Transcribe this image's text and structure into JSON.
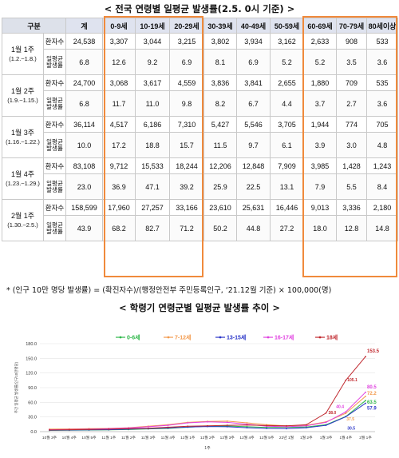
{
  "title": "< 전국 연령별 일평균 발생률(2.5. 0시 기준) >",
  "table": {
    "header": [
      "구분",
      "",
      "계",
      "0-9세",
      "10-19세",
      "20-29세",
      "30-39세",
      "40-49세",
      "50-59세",
      "60-69세",
      "70-79세",
      "80세이상"
    ],
    "row_labels": {
      "count": "환자수",
      "rate": "일평균 발생률"
    },
    "weeks": [
      {
        "label": "1월 1주",
        "sub": "(1.2.~1.8.)",
        "count": [
          "24,538",
          "3,307",
          "3,044",
          "3,215",
          "3,802",
          "3,934",
          "3,162",
          "2,633",
          "908",
          "533"
        ],
        "rate": [
          "6.8",
          "12.6",
          "9.2",
          "6.9",
          "8.1",
          "6.9",
          "5.2",
          "5.2",
          "3.5",
          "3.6"
        ]
      },
      {
        "label": "1월 2주",
        "sub": "(1.9.~1.15.)",
        "count": [
          "24,700",
          "3,068",
          "3,617",
          "4,559",
          "3,836",
          "3,841",
          "2,655",
          "1,880",
          "709",
          "535"
        ],
        "rate": [
          "6.8",
          "11.7",
          "11.0",
          "9.8",
          "8.2",
          "6.7",
          "4.4",
          "3.7",
          "2.7",
          "3.6"
        ]
      },
      {
        "label": "1월 3주",
        "sub": "(1.16.~1.22.)",
        "count": [
          "36,114",
          "4,517",
          "6,186",
          "7,310",
          "5,427",
          "5,546",
          "3,705",
          "1,944",
          "774",
          "705"
        ],
        "rate": [
          "10.0",
          "17.2",
          "18.8",
          "15.7",
          "11.5",
          "9.7",
          "6.1",
          "3.9",
          "3.0",
          "4.8"
        ]
      },
      {
        "label": "1월 4주",
        "sub": "(1.23.~1.29.)",
        "count": [
          "83,108",
          "9,712",
          "15,533",
          "18,244",
          "12,206",
          "12,848",
          "7,909",
          "3,985",
          "1,428",
          "1,243"
        ],
        "rate": [
          "23.0",
          "36.9",
          "47.1",
          "39.2",
          "25.9",
          "22.5",
          "13.1",
          "7.9",
          "5.5",
          "8.4"
        ]
      },
      {
        "label": "2월 1주",
        "sub": "(1.30.~2.5.)",
        "count": [
          "158,599",
          "17,960",
          "27,257",
          "33,166",
          "23,610",
          "25,631",
          "16,446",
          "9,013",
          "3,336",
          "2,180"
        ],
        "rate": [
          "43.9",
          "68.2",
          "82.7",
          "71.2",
          "50.2",
          "44.8",
          "27.2",
          "18.0",
          "12.8",
          "14.8"
        ]
      }
    ]
  },
  "note": "* (인구 10만 명당 발생률) = (확진자수)/(행정안전부 주민등록인구, ‘21.12월 기준) × 100,000(명)",
  "chart_title": "< 학령기 연령군별 일평균 발생률 추이 >",
  "chart_data": {
    "type": "line",
    "ylabel": "주간 일평균 발생률(인구10만명당)",
    "xlabel": "1주",
    "ylim": [
      0,
      180
    ],
    "yticks": [
      "0.0",
      "30.0",
      "60.0",
      "90.0",
      "120.0",
      "150.0",
      "180.0"
    ],
    "x": [
      "10월 3주",
      "10월 4주",
      "10월 5주",
      "11월 1주",
      "11월 2주",
      "11월 3주",
      "11월 4주",
      "12월 1주",
      "12월 2주",
      "12월 3주",
      "12월 4주",
      "12월 5주",
      "22년 1월",
      "1월 2주",
      "1월 3주",
      "1월 4주",
      "2월 1주"
    ],
    "series": [
      {
        "name": "0-6세",
        "color": "#2fb84a",
        "values": [
          2.5,
          2.8,
          3.2,
          3.6,
          4.2,
          5.5,
          6.5,
          9.0,
          11.0,
          11.5,
          10.0,
          8.5,
          9.0,
          9.5,
          14.0,
          31.0,
          63.5
        ]
      },
      {
        "name": "7-12세",
        "color": "#f39a4c",
        "values": [
          5.0,
          5.5,
          6.0,
          6.5,
          8.0,
          11.0,
          14.0,
          19.0,
          21.0,
          21.5,
          18.0,
          14.0,
          12.0,
          13.0,
          20.0,
          37.5,
          72.2
        ]
      },
      {
        "name": "13-15세",
        "color": "#2b36c8",
        "values": [
          3.0,
          3.2,
          3.6,
          4.0,
          5.0,
          6.0,
          7.5,
          9.5,
          10.5,
          10.0,
          8.0,
          6.5,
          6.0,
          8.0,
          13.0,
          30.5,
          57.9
        ]
      },
      {
        "name": "16-17세",
        "color": "#e040e0",
        "values": [
          4.0,
          4.5,
          5.0,
          6.0,
          7.5,
          10.0,
          13.0,
          18.0,
          20.0,
          19.0,
          15.0,
          11.0,
          10.0,
          12.0,
          19.0,
          40.4,
          80.5
        ]
      },
      {
        "name": "18세",
        "color": "#c0282e",
        "values": [
          3.5,
          4.0,
          4.5,
          5.0,
          6.0,
          7.0,
          9.0,
          11.0,
          12.0,
          13.0,
          13.5,
          12.5,
          12.0,
          14.0,
          38.0,
          105.1,
          153.5
        ]
      }
    ],
    "annotations": [
      "153.5",
      "105.1",
      "80.5",
      "72.2",
      "63.5",
      "57.9",
      "40.4",
      "38.0",
      "37.5",
      "30.5"
    ]
  }
}
